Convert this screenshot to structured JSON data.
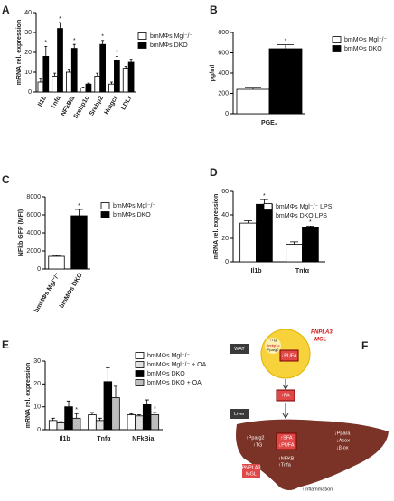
{
  "chart_data": [
    {
      "panel": "A",
      "type": "bar",
      "ylabel": "mRNA rel. expression",
      "categories": [
        "Il1b",
        "Tnfα",
        "NFkBia",
        "Srebp1c",
        "Srebp2",
        "Hmgcr",
        "LDLr"
      ],
      "series": [
        {
          "name": "bmMΦs Mgl⁻/⁻",
          "color": "#ffffff",
          "values": [
            5,
            8,
            10,
            2,
            8,
            4,
            12
          ],
          "errors": [
            2,
            1.5,
            1.5,
            0.5,
            1.5,
            1,
            1
          ]
        },
        {
          "name": "bmMΦs DKO",
          "color": "#000000",
          "values": [
            18,
            32,
            22,
            4,
            24,
            16,
            15
          ],
          "errors": [
            5,
            3,
            2,
            0.5,
            2,
            2,
            1.5
          ]
        }
      ],
      "ylim": [
        0,
        40
      ],
      "yticks": [
        0,
        10,
        20,
        30,
        40
      ],
      "significance": [
        "*",
        "*",
        "*",
        null,
        "*",
        "*",
        null
      ]
    },
    {
      "panel": "B",
      "type": "bar",
      "ylabel": "pg/ml",
      "categories": [
        "PGE₂"
      ],
      "series": [
        {
          "name": "bmMΦs Mgl⁻/⁻",
          "color": "#ffffff",
          "values": [
            240
          ],
          "errors": [
            20
          ]
        },
        {
          "name": "bmMΦs DKO",
          "color": "#000000",
          "values": [
            640
          ],
          "errors": [
            40
          ]
        }
      ],
      "ylim": [
        0,
        800
      ],
      "yticks": [
        0,
        200,
        400,
        600,
        800
      ],
      "significance": [
        "*"
      ]
    },
    {
      "panel": "C",
      "type": "bar",
      "ylabel": "NFkb GFP (MFI)",
      "categories": [
        "bmMΦs Mgl⁻/⁻",
        "bmMΦs DKO"
      ],
      "series": [
        {
          "name": "bmMΦs Mgl⁻/⁻",
          "color": "#ffffff",
          "values": [
            1400,
            null
          ],
          "errors": [
            100,
            null
          ]
        },
        {
          "name": "bmMΦs DKO",
          "color": "#000000",
          "values": [
            null,
            5900
          ],
          "errors": [
            null,
            700
          ]
        }
      ],
      "ylim": [
        0,
        8000
      ],
      "yticks": [
        0,
        2000,
        4000,
        6000,
        8000
      ],
      "significance": [
        null,
        "*"
      ]
    },
    {
      "panel": "D",
      "type": "bar",
      "ylabel": "mRNA rel. expression",
      "categories": [
        "Il1b",
        "Tnfα"
      ],
      "series": [
        {
          "name": "bmMΦs Mgl⁻/⁻ LPS",
          "color": "#ffffff",
          "values": [
            33,
            15
          ],
          "errors": [
            2,
            2
          ]
        },
        {
          "name": "bmMΦs DKO LPS",
          "color": "#000000",
          "values": [
            49,
            29
          ],
          "errors": [
            4,
            1.5
          ]
        }
      ],
      "ylim": [
        0,
        60
      ],
      "yticks": [
        0,
        20,
        40,
        60
      ],
      "significance": [
        "*",
        "*"
      ]
    },
    {
      "panel": "E",
      "type": "bar",
      "ylabel": "mRNA rel. expression",
      "categories": [
        "Il1b",
        "Tnfα",
        "NFkBia"
      ],
      "series": [
        {
          "name": "bmMΦs Mgl⁻/⁻",
          "color": "#ffffff",
          "values": [
            4,
            6.5,
            6.5
          ],
          "errors": [
            1,
            1,
            0.5
          ]
        },
        {
          "name": "bmMΦs Mgl⁻/⁻ + OA",
          "color": "#e0e0e0",
          "values": [
            3,
            4,
            6
          ],
          "errors": [
            0.5,
            1,
            0.5
          ]
        },
        {
          "name": "bmMΦs DKO",
          "color": "#000000",
          "values": [
            10,
            21,
            11
          ],
          "errors": [
            2.5,
            6,
            2
          ]
        },
        {
          "name": "bmMΦs DKO + OA",
          "color": "#bdbdbd",
          "values": [
            5,
            14,
            6.5
          ],
          "errors": [
            2,
            5,
            1
          ]
        }
      ],
      "ylim": [
        0,
        30
      ],
      "yticks": [
        0,
        10,
        20,
        30
      ],
      "significance": [
        "*",
        null,
        "*"
      ]
    }
  ],
  "diagram": {
    "panel": "F",
    "wat": "WAT",
    "tg": "↑Tg",
    "srebp": "Srebp1c",
    "pparg": "Pparg2",
    "pnpla": "PNPLA3",
    "mgl": "MGL",
    "pufa": "↓PUFA",
    "fa": "↑FA",
    "liver": "Liver",
    "l_pparg": "↑Pparg2",
    "l_tg": "↑TG",
    "l_sfa": "↑SFA",
    "l_pufa": "↓PUFA",
    "ppara": "↓Ppara",
    "acox": "↓Acox",
    "box": "↓β-ox",
    "nfkb": "↑NFKB",
    "tnfa": "↑Tnfa",
    "l_pnpla": "PNPLA3",
    "l_mgl": "MGL",
    "infl": "↑Inflammation"
  }
}
